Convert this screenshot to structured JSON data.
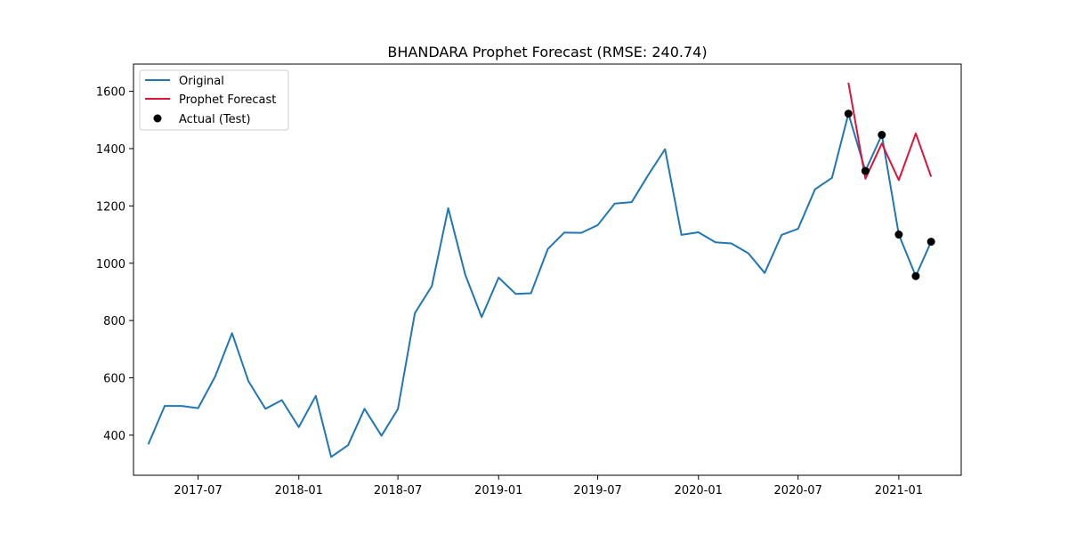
{
  "chart_data": {
    "type": "line",
    "title": "BHANDARA Prophet Forecast (RMSE: 240.74)",
    "xlabel": "",
    "ylabel": "",
    "x_axis": {
      "type": "date",
      "range": [
        "2017-03-05",
        "2021-04-25"
      ],
      "ticks": [
        "2017-07-01",
        "2018-01-01",
        "2018-07-01",
        "2019-01-01",
        "2019-07-01",
        "2020-01-01",
        "2020-07-01",
        "2021-01-01"
      ],
      "tick_labels": [
        "2017-07",
        "2018-01",
        "2018-07",
        "2019-01",
        "2019-07",
        "2020-01",
        "2020-07",
        "2021-01"
      ]
    },
    "y_axis": {
      "range": [
        260,
        1695
      ],
      "ticks": [
        400,
        600,
        800,
        1000,
        1200,
        1400,
        1600
      ],
      "tick_labels": [
        "400",
        "600",
        "800",
        "1000",
        "1200",
        "1400",
        "1600"
      ]
    },
    "grid": false,
    "legend": {
      "position": "top-left"
    },
    "series": [
      {
        "name": "Original",
        "kind": "line",
        "color": "#1f77b4",
        "x": [
          "2017-04-01",
          "2017-05-01",
          "2017-06-01",
          "2017-07-01",
          "2017-08-01",
          "2017-09-01",
          "2017-10-01",
          "2017-11-01",
          "2017-12-01",
          "2018-01-01",
          "2018-02-01",
          "2018-03-01",
          "2018-04-01",
          "2018-05-01",
          "2018-06-01",
          "2018-07-01",
          "2018-08-01",
          "2018-09-01",
          "2018-10-01",
          "2018-11-01",
          "2018-12-01",
          "2019-01-01",
          "2019-02-01",
          "2019-03-01",
          "2019-04-01",
          "2019-05-01",
          "2019-06-01",
          "2019-07-01",
          "2019-08-01",
          "2019-09-01",
          "2019-10-01",
          "2019-11-01",
          "2019-12-01",
          "2020-01-01",
          "2020-02-01",
          "2020-03-01",
          "2020-04-01",
          "2020-05-01",
          "2020-06-01",
          "2020-07-01",
          "2020-08-01",
          "2020-09-01",
          "2020-10-01",
          "2020-11-01",
          "2020-12-01",
          "2021-01-01",
          "2021-02-01",
          "2021-03-01"
        ],
        "y": [
          368,
          502,
          502,
          494,
          604,
          756,
          588,
          492,
          522,
          428,
          537,
          324,
          365,
          492,
          398,
          491,
          826,
          920,
          1192,
          960,
          812,
          950,
          893,
          895,
          1050,
          1107,
          1106,
          1133,
          1208,
          1213,
          1307,
          1398,
          1099,
          1108,
          1073,
          1069,
          1035,
          966,
          1099,
          1120,
          1258,
          1298,
          1522,
          1322,
          1448,
          1100,
          955,
          1075
        ]
      },
      {
        "name": "Prophet Forecast",
        "kind": "line",
        "color": "#dc143c",
        "x": [
          "2020-10-01",
          "2020-11-01",
          "2020-12-01",
          "2021-01-01",
          "2021-02-01",
          "2021-03-01"
        ],
        "y": [
          1630,
          1295,
          1418,
          1290,
          1453,
          1302
        ]
      },
      {
        "name": "Actual (Test)",
        "kind": "scatter",
        "color": "#000000",
        "x": [
          "2020-10-01",
          "2020-11-01",
          "2020-12-01",
          "2021-01-01",
          "2021-02-01",
          "2021-03-01"
        ],
        "y": [
          1522,
          1322,
          1448,
          1100,
          955,
          1075
        ]
      }
    ]
  }
}
